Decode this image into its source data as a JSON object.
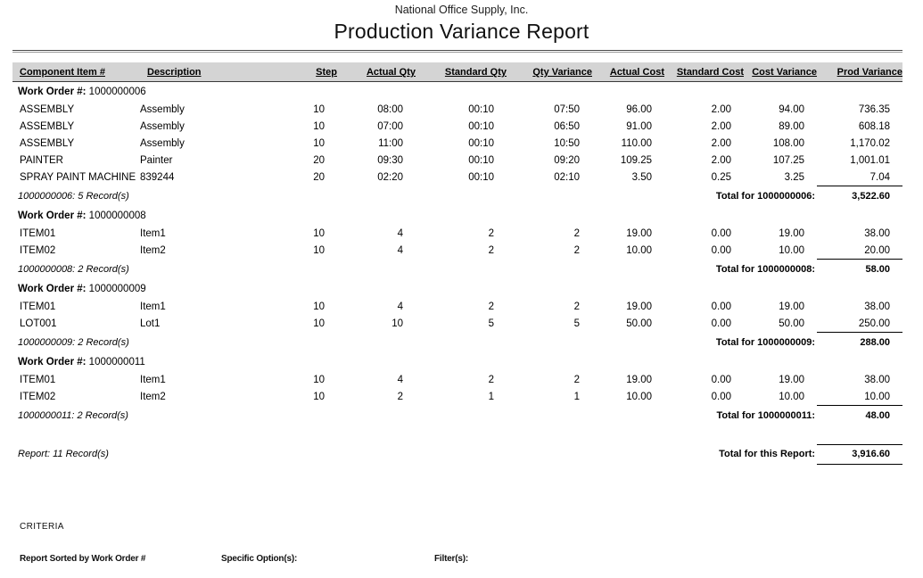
{
  "header": {
    "company": "National Office Supply, Inc.",
    "title": "Production Variance Report"
  },
  "table": {
    "columns": [
      "Component Item #",
      "Description",
      "Step",
      "Actual Qty",
      "Standard Qty",
      "Qty Variance",
      "Actual Cost",
      "Standard Cost",
      "Cost Variance",
      "Prod Variance"
    ],
    "work_order_label": "Work Order #:",
    "groups": [
      {
        "work_order": "1000000006",
        "rows": [
          [
            "ASSEMBLY",
            "Assembly",
            "10",
            "08:00",
            "00:10",
            "07:50",
            "96.00",
            "2.00",
            "94.00",
            "736.35"
          ],
          [
            "ASSEMBLY",
            "Assembly",
            "10",
            "07:00",
            "00:10",
            "06:50",
            "91.00",
            "2.00",
            "89.00",
            "608.18"
          ],
          [
            "ASSEMBLY",
            "Assembly",
            "10",
            "11:00",
            "00:10",
            "10:50",
            "110.00",
            "2.00",
            "108.00",
            "1,170.02"
          ],
          [
            "PAINTER",
            "Painter",
            "20",
            "09:30",
            "00:10",
            "09:20",
            "109.25",
            "2.00",
            "107.25",
            "1,001.01"
          ],
          [
            "SPRAY PAINT MACHINE",
            "839244",
            "20",
            "02:20",
            "00:10",
            "02:10",
            "3.50",
            "0.25",
            "3.25",
            "7.04"
          ]
        ],
        "record_count": "1000000006: 5 Record(s)",
        "total_label": "Total for 1000000006:",
        "total_value": "3,522.60"
      },
      {
        "work_order": "1000000008",
        "rows": [
          [
            "ITEM01",
            "Item1",
            "10",
            "4",
            "2",
            "2",
            "19.00",
            "0.00",
            "19.00",
            "38.00"
          ],
          [
            "ITEM02",
            "Item2",
            "10",
            "4",
            "2",
            "2",
            "10.00",
            "0.00",
            "10.00",
            "20.00"
          ]
        ],
        "record_count": "1000000008: 2 Record(s)",
        "total_label": "Total for 1000000008:",
        "total_value": "58.00"
      },
      {
        "work_order": "1000000009",
        "rows": [
          [
            "ITEM01",
            "Item1",
            "10",
            "4",
            "2",
            "2",
            "19.00",
            "0.00",
            "19.00",
            "38.00"
          ],
          [
            "LOT001",
            "Lot1",
            "10",
            "10",
            "5",
            "5",
            "50.00",
            "0.00",
            "50.00",
            "250.00"
          ]
        ],
        "record_count": "1000000009: 2 Record(s)",
        "total_label": "Total for 1000000009:",
        "total_value": "288.00"
      },
      {
        "work_order": "1000000011",
        "rows": [
          [
            "ITEM01",
            "Item1",
            "10",
            "4",
            "2",
            "2",
            "19.00",
            "0.00",
            "19.00",
            "38.00"
          ],
          [
            "ITEM02",
            "Item2",
            "10",
            "2",
            "1",
            "1",
            "10.00",
            "0.00",
            "10.00",
            "10.00"
          ]
        ],
        "record_count": "1000000011: 2 Record(s)",
        "total_label": "Total for 1000000011:",
        "total_value": "48.00"
      }
    ],
    "report_record_count": "Report: 11 Record(s)",
    "report_total_label": "Total for this Report:",
    "report_total_value": "3,916.60"
  },
  "criteria": {
    "heading": "CRITERIA",
    "sorted_by": "Report Sorted by Work Order #",
    "specific_options_label": "Specific Option(s):",
    "filters_label": "Filter(s):"
  },
  "colors": {
    "header_band": "#d4d4d4",
    "rule_dark": "#4a4a4a",
    "rule_light": "#9a9a9a",
    "total_line": "#000000"
  }
}
